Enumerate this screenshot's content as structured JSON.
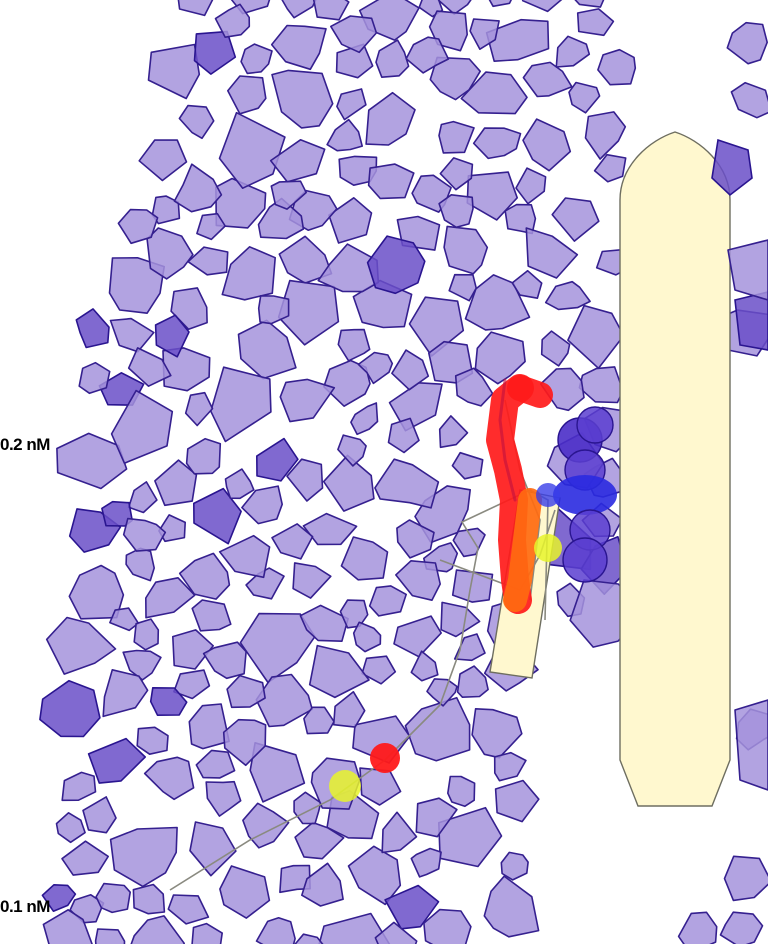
{
  "scale_labels": {
    "upper": "0.2 nM",
    "lower": "0.1 nM"
  },
  "colors": {
    "cell_fill": "#a493dc",
    "cell_stroke": "#35208f",
    "vessel_fill": "#fff8cf",
    "red_agent": "#ff1a1a",
    "orange_agent": "#ff6a10",
    "blue_agent": "#2a2ae0",
    "yellow_agent": "#e8f52a",
    "trail": "#8a8a80"
  }
}
